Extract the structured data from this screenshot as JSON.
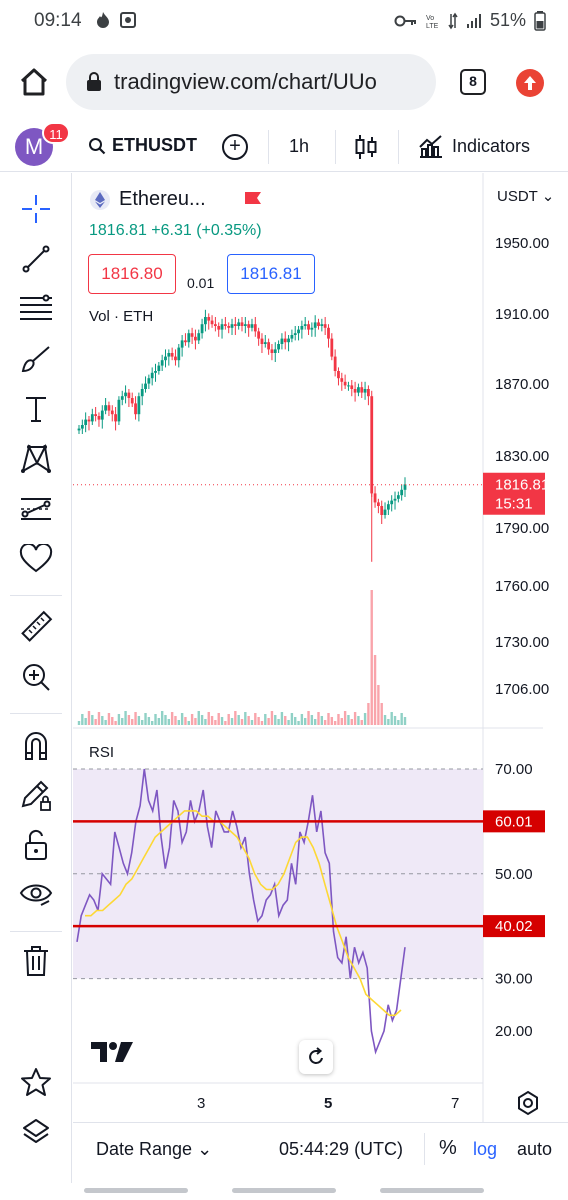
{
  "status_bar": {
    "time": "09:14",
    "battery_pct": "51%",
    "icons": [
      "fire-icon",
      "image-icon",
      "key-icon",
      "volte-icon",
      "wifi-icon",
      "signal-icon",
      "battery-icon"
    ]
  },
  "browser": {
    "url": "tradingview.com/chart/UUo",
    "tab_count": "8"
  },
  "toolbar": {
    "avatar_letter": "M",
    "notifications": "11",
    "symbol": "ETHUSDT",
    "interval": "1h",
    "indicators_label": "Indicators"
  },
  "legend": {
    "name": "Ethereu...",
    "price_change": "1816.81  +6.31 (+0.35%)",
    "sell_price": "1816.80",
    "spread": "0.01",
    "buy_price": "1816.81",
    "vol_label": "Vol · ETH",
    "rsi_label": "RSI"
  },
  "price_axis": {
    "currency": "USDT",
    "ticks": [
      "1950.00",
      "1910.00",
      "1870.00",
      "1830.00",
      "1790.00",
      "1760.00",
      "1730.00",
      "1706.00"
    ],
    "last_price": "1816.81",
    "countdown": "15:31"
  },
  "rsi_axis": {
    "ticks": [
      "70.00",
      "50.00",
      "30.00",
      "20.00"
    ],
    "upper_line": "60.01",
    "lower_line": "40.02"
  },
  "time_axis": {
    "ticks": [
      "3",
      "5",
      "7"
    ]
  },
  "bottom_bar": {
    "date_range": "Date Range",
    "utc_time": "05:44:29 (UTC)",
    "percent": "%",
    "log": "log",
    "auto": "auto"
  },
  "colors": {
    "up": "#089981",
    "down": "#f23645",
    "rsi_line": "#7e57c2",
    "rsi_ma": "#fdd835",
    "rsi_band": "#ede7f6",
    "level_line": "#d50000",
    "accent": "#2962ff"
  },
  "chart_data": [
    {
      "type": "candlestick",
      "title": "ETHUSDT 1h",
      "y_unit": "USDT",
      "ylim": [
        1690,
        1975
      ],
      "x_ticks": [
        "3",
        "5",
        "7"
      ],
      "last_price": 1816.81,
      "close_series": [
        1848,
        1850,
        1853,
        1852,
        1856,
        1855,
        1853,
        1858,
        1861,
        1858,
        1856,
        1852,
        1864,
        1866,
        1868,
        1865,
        1862,
        1856,
        1866,
        1870,
        1873,
        1876,
        1879,
        1880,
        1883,
        1886,
        1888,
        1890,
        1888,
        1886,
        1893,
        1897,
        1896,
        1901,
        1899,
        1897,
        1901,
        1906,
        1910,
        1908,
        1906,
        1905,
        1903,
        1906,
        1905,
        1904,
        1906,
        1905,
        1907,
        1905,
        1906,
        1904,
        1906,
        1902,
        1898,
        1895,
        1896,
        1892,
        1890,
        1892,
        1895,
        1898,
        1896,
        1898,
        1900,
        1901,
        1903,
        1905,
        1906,
        1903,
        1904,
        1907,
        1905,
        1906,
        1904,
        1898,
        1888,
        1880,
        1876,
        1874,
        1872,
        1872,
        1870,
        1868,
        1871,
        1868,
        1870,
        1866,
        1812,
        1807,
        1805,
        1800,
        1803,
        1806,
        1808,
        1809,
        1811,
        1814,
        1817
      ],
      "volume_note": "volume histogram per candle; spike at the large drop near day 5.5"
    },
    {
      "type": "line",
      "title": "RSI",
      "ylim": [
        12,
        75
      ],
      "levels": [
        60.01,
        40.02
      ],
      "band": [
        30,
        70
      ],
      "series": [
        {
          "name": "RSI",
          "values": [
            37,
            42,
            44,
            46,
            45,
            43,
            50,
            49,
            48,
            58,
            55,
            52,
            50,
            54,
            60,
            63,
            70,
            64,
            62,
            66,
            57,
            51,
            55,
            64,
            62,
            56,
            58,
            64,
            60,
            62,
            66,
            59,
            55,
            62,
            60,
            58,
            58,
            62,
            59,
            55,
            57,
            50,
            45,
            41,
            42,
            45,
            46,
            48,
            42,
            44,
            45,
            52,
            48,
            58,
            56,
            60,
            65,
            58,
            62,
            54,
            52,
            39,
            34,
            33,
            38,
            30,
            36,
            33,
            35,
            32,
            20,
            16,
            18,
            20,
            25,
            22,
            24,
            30,
            36
          ]
        },
        {
          "name": "RSI-based MA",
          "values": [
            42,
            42,
            43,
            43,
            44,
            45,
            46,
            48,
            49,
            51,
            53,
            55,
            57,
            58,
            59,
            60,
            61,
            62,
            62,
            62,
            61,
            61,
            60,
            60,
            59,
            58,
            57,
            55,
            53,
            50,
            48,
            47,
            47,
            48,
            50,
            53,
            56,
            57,
            57,
            55,
            52,
            48,
            44,
            40,
            37,
            34,
            32,
            30,
            27,
            26,
            25,
            24,
            23,
            23,
            24
          ]
        }
      ]
    }
  ]
}
